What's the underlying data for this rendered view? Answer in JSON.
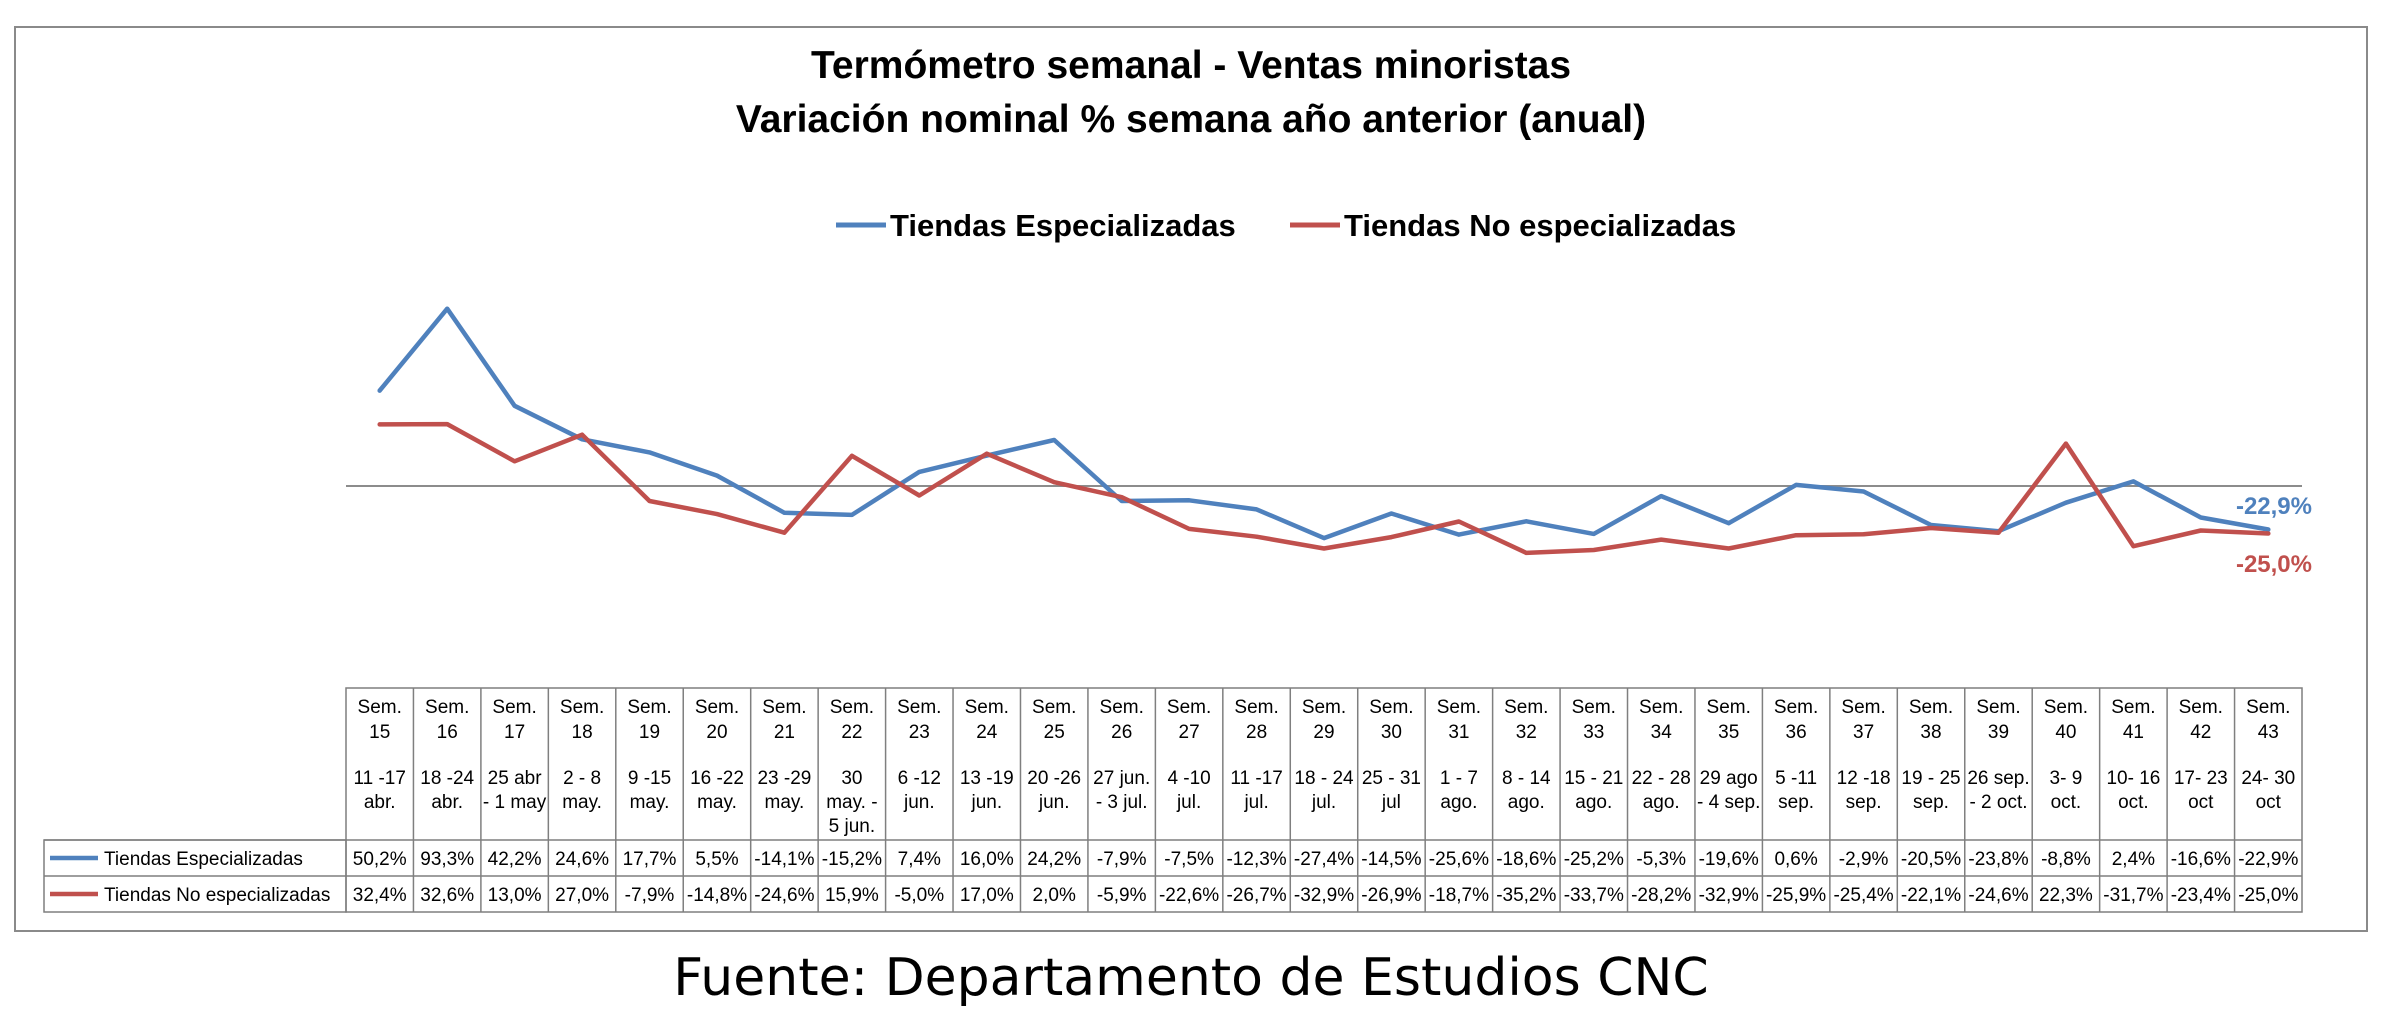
{
  "chart_data": {
    "type": "line",
    "title_lines": [
      "Termómetro semanal - Ventas minoristas",
      "Variación nominal % semana año anterior (anual)"
    ],
    "categories": [
      [
        "Sem.",
        "15",
        "11  -17",
        "abr."
      ],
      [
        "Sem.",
        "16",
        "18 -24",
        "abr."
      ],
      [
        "Sem.",
        "17",
        "25 abr",
        "- 1 may"
      ],
      [
        "Sem.",
        "18",
        "2 - 8",
        "may."
      ],
      [
        "Sem.",
        "19",
        "9 -15",
        "may."
      ],
      [
        "Sem.",
        "20",
        "16 -22",
        "may."
      ],
      [
        "Sem.",
        "21",
        "23 -29",
        "may."
      ],
      [
        "Sem.",
        "22",
        "30",
        "may. -",
        "5 jun."
      ],
      [
        "Sem.",
        "23",
        "6 -12",
        "jun."
      ],
      [
        "Sem.",
        "24",
        "13 -19",
        "jun."
      ],
      [
        "Sem.",
        "25",
        "20 -26",
        "jun."
      ],
      [
        "Sem.",
        "26",
        "27 jun.",
        "- 3 jul."
      ],
      [
        "Sem.",
        "27",
        "4 -10",
        "jul."
      ],
      [
        "Sem.",
        "28",
        "11 -17",
        "jul."
      ],
      [
        "Sem.",
        "29",
        "18 - 24",
        "jul."
      ],
      [
        "Sem.",
        "30",
        "25 - 31",
        "jul"
      ],
      [
        "Sem.",
        "31",
        "1 - 7",
        "ago."
      ],
      [
        "Sem.",
        "32",
        "8 - 14",
        "ago."
      ],
      [
        "Sem.",
        "33",
        "15 - 21",
        "ago."
      ],
      [
        "Sem.",
        "34",
        "22 - 28",
        "ago."
      ],
      [
        "Sem.",
        "35",
        "29 ago",
        "- 4 sep."
      ],
      [
        "Sem.",
        "36",
        "5 -11",
        "sep."
      ],
      [
        "Sem.",
        "37",
        "12 -18",
        "sep."
      ],
      [
        "Sem.",
        "38",
        "19 - 25",
        "sep."
      ],
      [
        "Sem.",
        "39",
        "26 sep.",
        "- 2 oct."
      ],
      [
        "Sem.",
        "40",
        "3- 9",
        "oct."
      ],
      [
        "Sem.",
        "41",
        "10- 16",
        "oct."
      ],
      [
        "Sem.",
        "42",
        "17- 23",
        "oct"
      ],
      [
        "Sem.",
        "43",
        "24- 30",
        "oct"
      ]
    ],
    "series": [
      {
        "name": "Tiendas Especializadas",
        "color": "#4F81BD",
        "values": [
          50.2,
          93.3,
          42.2,
          24.6,
          17.7,
          5.5,
          -14.1,
          -15.2,
          7.4,
          16.0,
          24.2,
          -7.9,
          -7.5,
          -12.3,
          -27.4,
          -14.5,
          -25.6,
          -18.6,
          -25.2,
          -5.3,
          -19.6,
          0.6,
          -2.9,
          -20.5,
          -23.8,
          -8.8,
          2.4,
          -16.6,
          -22.9
        ],
        "labels": [
          "50,2%",
          "93,3%",
          "42,2%",
          "24,6%",
          "17,7%",
          "5,5%",
          "-14,1%",
          "-15,2%",
          "7,4%",
          "16,0%",
          "24,2%",
          "-7,9%",
          "-7,5%",
          "-12,3%",
          "-27,4%",
          "-14,5%",
          "-25,6%",
          "-18,6%",
          "-25,2%",
          "-5,3%",
          "-19,6%",
          "0,6%",
          "-2,9%",
          "-20,5%",
          "-23,8%",
          "-8,8%",
          "2,4%",
          "-16,6%",
          "-22,9%"
        ],
        "end_label": "-22,9%"
      },
      {
        "name": "Tiendas No especializadas",
        "color": "#C0504D",
        "values": [
          32.4,
          32.6,
          13.0,
          27.0,
          -7.9,
          -14.8,
          -24.6,
          15.9,
          -5.0,
          17.0,
          2.0,
          -5.9,
          -22.6,
          -26.7,
          -32.9,
          -26.9,
          -18.7,
          -35.2,
          -33.7,
          -28.2,
          -32.9,
          -25.9,
          -25.4,
          -22.1,
          -24.6,
          22.3,
          -31.7,
          -23.4,
          -25.0
        ],
        "labels": [
          "32,4%",
          "32,6%",
          "13,0%",
          "27,0%",
          "-7,9%",
          "-14,8%",
          "-24,6%",
          "15,9%",
          "-5,0%",
          "17,0%",
          "2,0%",
          "-5,9%",
          "-22,6%",
          "-26,7%",
          "-32,9%",
          "-26,9%",
          "-18,7%",
          "-35,2%",
          "-33,7%",
          "-28,2%",
          "-32,9%",
          "-25,9%",
          "-25,4%",
          "-22,1%",
          "-24,6%",
          "22,3%",
          "-31,7%",
          "-23,4%",
          "-25,0%"
        ],
        "end_label": "-25,0%"
      }
    ],
    "ylim": [
      -100,
      100
    ],
    "zero_line": true,
    "grid": false,
    "legend_position": "top-center",
    "data_table": true
  },
  "source_text": "Fuente: Departamento de Estudios CNC"
}
